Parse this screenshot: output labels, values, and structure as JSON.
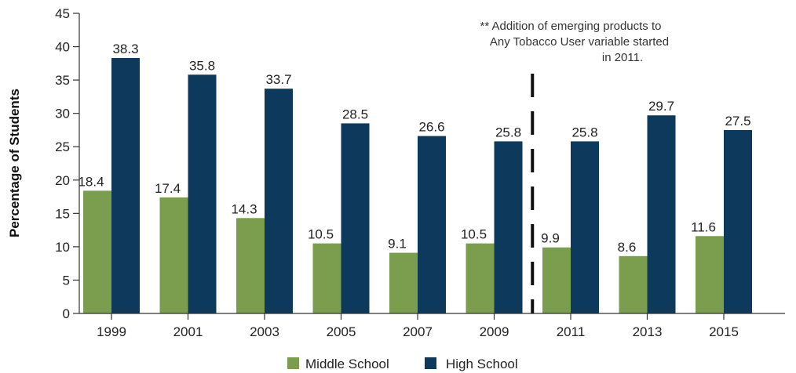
{
  "chart_data": {
    "type": "bar",
    "categories": [
      "1999",
      "2001",
      "2003",
      "2005",
      "2007",
      "2009",
      "2011",
      "2013",
      "2015"
    ],
    "series": [
      {
        "name": "Middle School",
        "color": "#7a9e4e",
        "values": [
          18.4,
          17.4,
          14.3,
          10.5,
          9.1,
          10.5,
          9.9,
          8.6,
          11.6
        ]
      },
      {
        "name": "High School",
        "color": "#0d3a5c",
        "values": [
          38.3,
          35.8,
          33.7,
          28.5,
          26.6,
          25.8,
          25.8,
          29.7,
          27.5
        ]
      }
    ],
    "xlabel": "",
    "ylabel": "Percentage of Students",
    "ylim": [
      0,
      45
    ],
    "yticks": [
      "0",
      "5",
      "10",
      "15",
      "20",
      "25",
      "30",
      "35",
      "40",
      "45"
    ],
    "grid": false,
    "legend_position": "bottom-center",
    "annotation": {
      "lines": [
        "** Addition of emerging products to",
        "Any Tobacco User variable started",
        "in 2011."
      ],
      "divider_between": [
        "2009",
        "2011"
      ]
    }
  }
}
